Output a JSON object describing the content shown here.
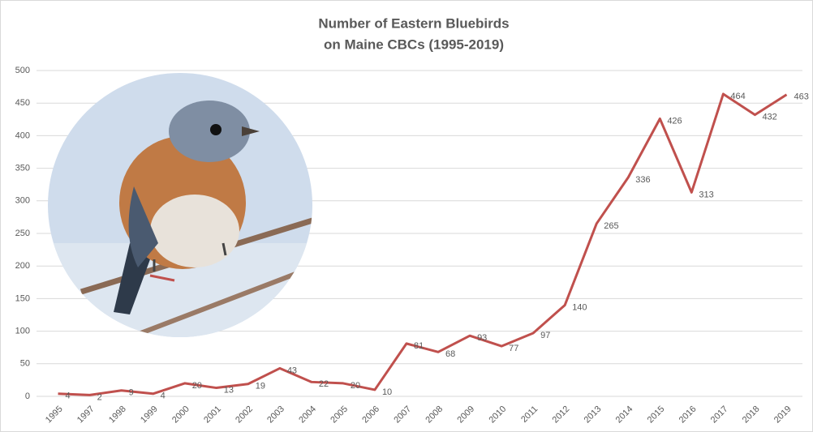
{
  "chart_data": {
    "type": "line",
    "title": [
      "Number of Eastern Bluebirds",
      "on Maine CBCs (1995-2019)"
    ],
    "categories": [
      "1995",
      "1997",
      "1998",
      "1999",
      "2000",
      "2001",
      "2002",
      "2003",
      "2004",
      "2005",
      "2006",
      "2007",
      "2008",
      "2009",
      "2010",
      "2011",
      "2012",
      "2013",
      "2014",
      "2015",
      "2016",
      "2017",
      "2018",
      "2019"
    ],
    "values": [
      4,
      2,
      9,
      4,
      20,
      13,
      19,
      43,
      22,
      20,
      10,
      81,
      68,
      93,
      77,
      97,
      140,
      265,
      336,
      426,
      313,
      464,
      432,
      463
    ],
    "color": "#c0504d",
    "ylim": [
      0,
      500
    ],
    "yticks": [
      0,
      50,
      100,
      150,
      200,
      250,
      300,
      350,
      400,
      450,
      500
    ],
    "grid": true
  }
}
